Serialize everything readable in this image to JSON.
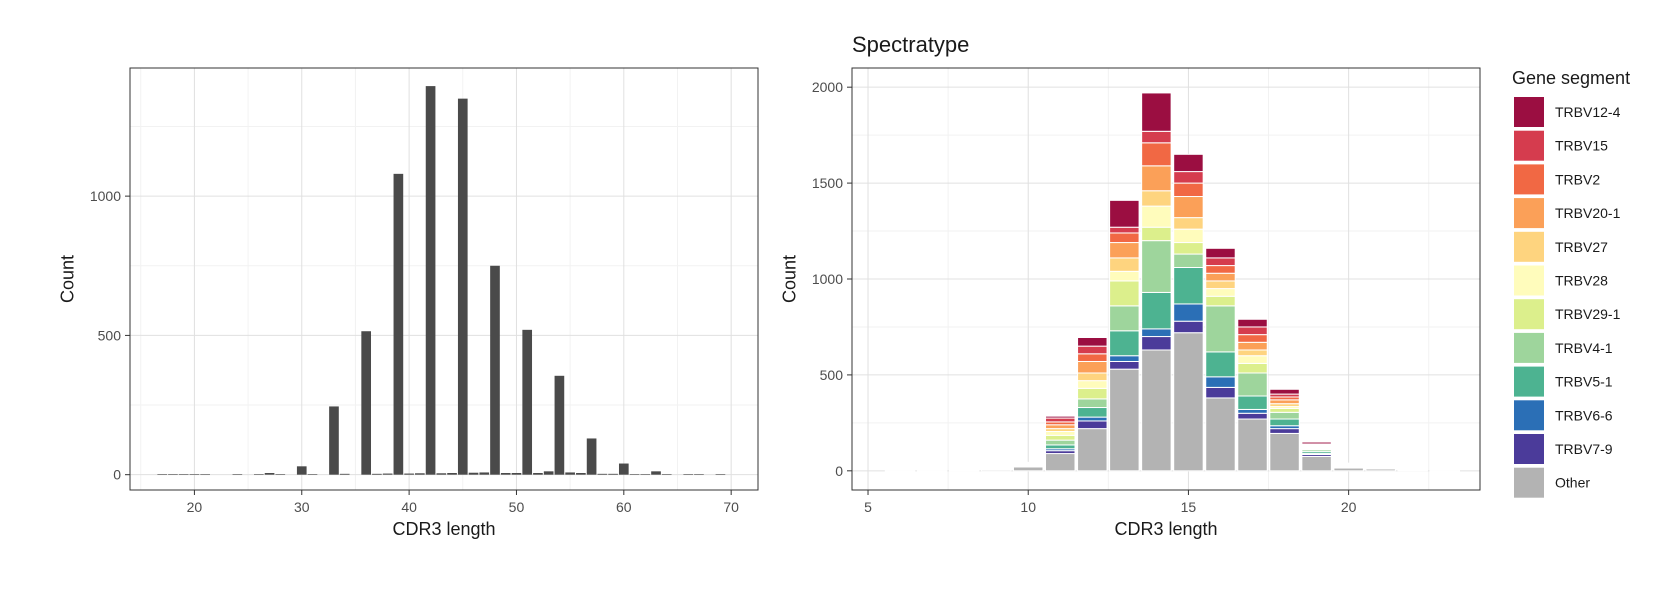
{
  "chart_data": [
    {
      "type": "bar",
      "title": "",
      "xlabel": "CDR3 length",
      "ylabel": "Count",
      "xlim": [
        14,
        72.5
      ],
      "ylim": [
        -55,
        1460
      ],
      "xticks": [
        20,
        30,
        40,
        50,
        60,
        70
      ],
      "yticks": [
        0,
        500,
        1000
      ],
      "grid": true,
      "bar_color": "#4a4a4a",
      "bar_width": 0.9,
      "x": [
        17,
        18,
        19,
        20,
        21,
        24,
        26,
        27,
        28,
        30,
        31,
        33,
        34,
        36,
        37,
        38,
        39,
        40,
        41,
        42,
        43,
        44,
        45,
        46,
        47,
        48,
        49,
        50,
        51,
        52,
        53,
        54,
        55,
        56,
        57,
        58,
        59,
        60,
        61,
        62,
        63,
        64,
        66,
        67,
        69
      ],
      "values": [
        2,
        2,
        2,
        2,
        1,
        1,
        1,
        6,
        2,
        30,
        2,
        245,
        3,
        515,
        3,
        4,
        1080,
        4,
        5,
        1395,
        5,
        6,
        1350,
        7,
        8,
        750,
        6,
        6,
        520,
        6,
        12,
        355,
        8,
        6,
        130,
        3,
        3,
        40,
        2,
        2,
        12,
        1,
        1,
        1,
        1
      ]
    },
    {
      "type": "bar",
      "stacked": true,
      "title": "Spectratype",
      "xlabel": "CDR3 length",
      "ylabel": "Count",
      "xlim": [
        4.5,
        24.1
      ],
      "ylim": [
        -100,
        2100
      ],
      "xticks": [
        5,
        10,
        15,
        20
      ],
      "yticks": [
        0,
        500,
        1000,
        1500,
        2000
      ],
      "grid": true,
      "bar_width": 0.92,
      "categories": [
        6,
        7,
        8,
        9,
        10,
        11,
        12,
        13,
        14,
        15,
        16,
        17,
        18,
        19,
        20,
        21,
        22,
        23
      ],
      "legend_title": "Gene segment",
      "legend_position": "right",
      "series": [
        {
          "name": "Other",
          "color": "#b3b3b3",
          "values": [
            1,
            1,
            2,
            6,
            20,
            90,
            220,
            530,
            630,
            720,
            380,
            270,
            195,
            75,
            15,
            10,
            3,
            1
          ]
        },
        {
          "name": "TRBV7-9",
          "color": "#4b3b9a",
          "values": [
            0,
            0,
            0,
            0,
            0,
            15,
            40,
            40,
            70,
            60,
            55,
            30,
            25,
            10,
            0,
            0,
            0,
            0
          ]
        },
        {
          "name": "TRBV6-6",
          "color": "#2b6fb6",
          "values": [
            0,
            0,
            0,
            0,
            0,
            10,
            20,
            30,
            40,
            90,
            55,
            20,
            15,
            5,
            0,
            0,
            0,
            0
          ]
        },
        {
          "name": "TRBV5-1",
          "color": "#4db391",
          "values": [
            0,
            0,
            0,
            0,
            5,
            20,
            50,
            130,
            190,
            190,
            130,
            70,
            35,
            10,
            2,
            3,
            0,
            0
          ]
        },
        {
          "name": "TRBV4-1",
          "color": "#9ed59c",
          "values": [
            0,
            0,
            0,
            0,
            3,
            25,
            45,
            130,
            270,
            70,
            240,
            120,
            35,
            10,
            2,
            3,
            0,
            0
          ]
        },
        {
          "name": "TRBV29-1",
          "color": "#dcef8c",
          "values": [
            0,
            0,
            0,
            0,
            3,
            25,
            55,
            130,
            70,
            60,
            50,
            50,
            20,
            5,
            2,
            2,
            0,
            0
          ]
        },
        {
          "name": "TRBV28",
          "color": "#fffcbc",
          "values": [
            0,
            0,
            0,
            0,
            2,
            20,
            40,
            50,
            110,
            70,
            40,
            40,
            10,
            5,
            2,
            2,
            0,
            0
          ]
        },
        {
          "name": "TRBV27",
          "color": "#fed47f",
          "values": [
            0,
            0,
            0,
            0,
            2,
            15,
            40,
            70,
            80,
            60,
            40,
            30,
            15,
            5,
            4,
            2,
            0,
            0
          ]
        },
        {
          "name": "TRBV20-1",
          "color": "#fba058",
          "values": [
            0,
            0,
            0,
            0,
            3,
            20,
            60,
            80,
            130,
            110,
            40,
            40,
            20,
            5,
            5,
            2,
            0,
            0
          ]
        },
        {
          "name": "TRBV2",
          "color": "#f16844",
          "values": [
            0,
            0,
            0,
            0,
            2,
            15,
            40,
            50,
            120,
            70,
            40,
            40,
            15,
            5,
            3,
            2,
            0,
            0
          ]
        },
        {
          "name": "TRBV15",
          "color": "#d53c4e",
          "values": [
            0,
            0,
            0,
            0,
            2,
            20,
            40,
            30,
            60,
            60,
            40,
            40,
            15,
            5,
            2,
            2,
            0,
            0
          ]
        },
        {
          "name": "TRBV12-4",
          "color": "#9b0e41",
          "values": [
            0,
            0,
            0,
            0,
            2,
            10,
            45,
            140,
            200,
            90,
            50,
            40,
            25,
            10,
            3,
            2,
            0,
            0
          ]
        }
      ]
    }
  ]
}
